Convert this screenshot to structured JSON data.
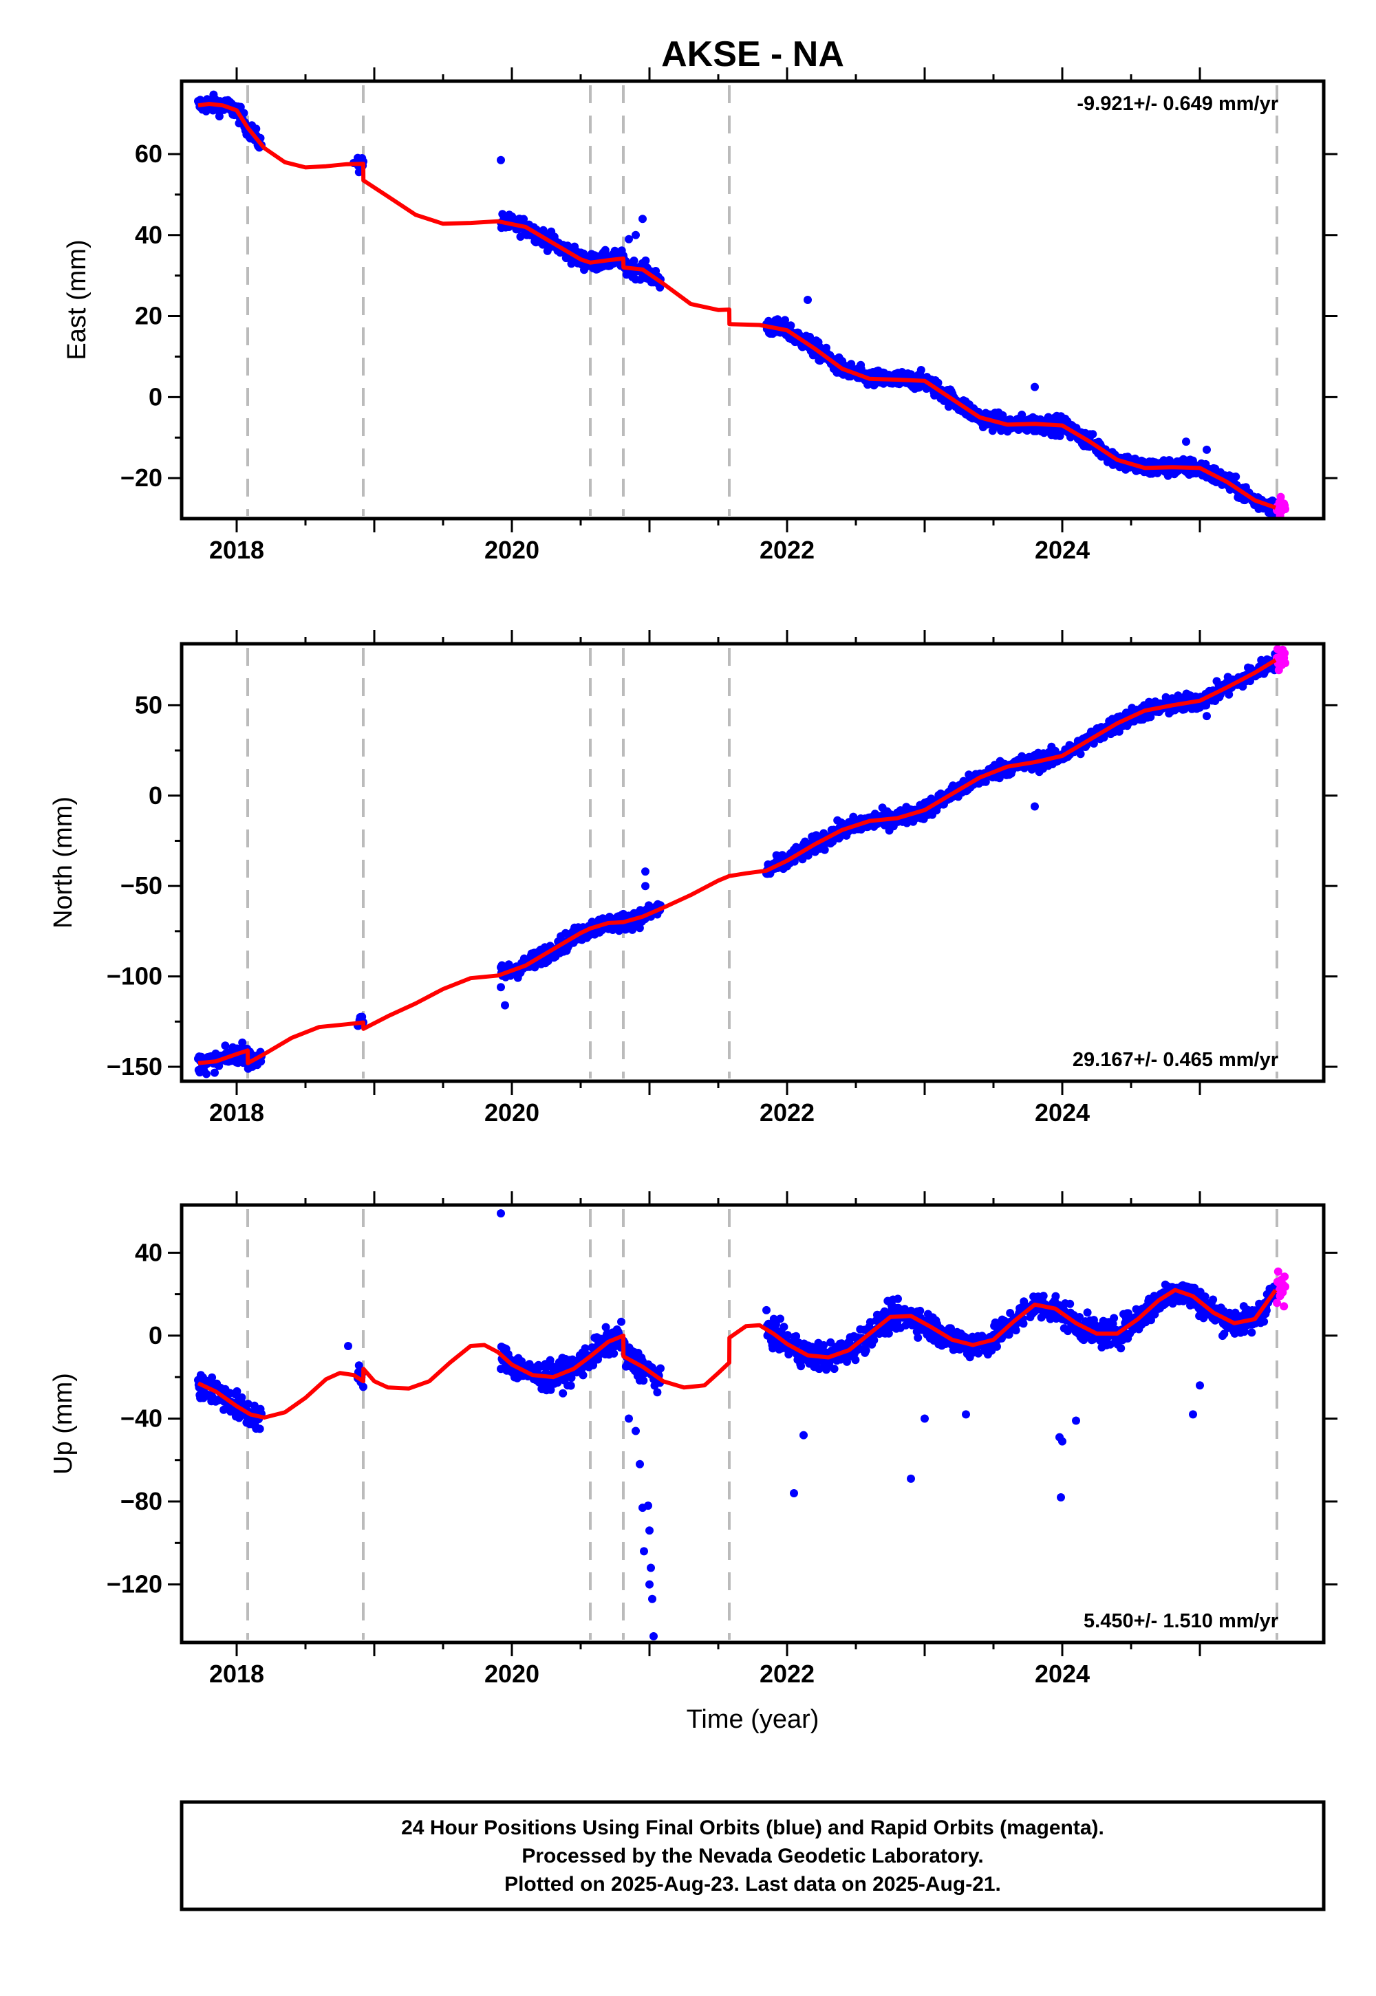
{
  "figure": {
    "title": "AKSE - NA",
    "xlabel": "Time (year)",
    "x_ticks": [
      2018,
      2020,
      2022,
      2024
    ],
    "xlim": [
      2017.6,
      2025.9
    ],
    "breaks": [
      2018.08,
      2018.92,
      2020.57,
      2020.81,
      2021.58,
      2025.56
    ],
    "footer": [
      "24 Hour Positions Using Final Orbits (blue) and Rapid Orbits (magenta).",
      "Processed by the Nevada Geodetic Laboratory.",
      "Plotted on 2025-Aug-23. Last data on 2025-Aug-21."
    ],
    "colors": {
      "final": "#0000ff",
      "rapid": "#ff00ff",
      "model": "#ff0000",
      "breaks": "#bbbbbb"
    }
  },
  "chart_data": [
    {
      "type": "scatter",
      "ylabel": "East (mm)",
      "ylim": [
        -30,
        78
      ],
      "y_ticks": [
        -20,
        0,
        20,
        40,
        60
      ],
      "rate": "-9.921+/- 0.649 mm/yr",
      "rate_position": "top-right",
      "segments": [
        [
          2017.72,
          2018.18
        ],
        [
          2018.88,
          2018.92
        ],
        [
          2019.92,
          2021.08
        ],
        [
          2021.85,
          2025.55
        ]
      ],
      "rapid_range": [
        2025.56,
        2025.62
      ],
      "model": [
        [
          2017.72,
          72
        ],
        [
          2017.8,
          72.4
        ],
        [
          2017.9,
          72
        ],
        [
          2018.0,
          70.8
        ],
        [
          2018.08,
          66.5
        ],
        [
          2018.2,
          61.5
        ],
        [
          2018.35,
          58
        ],
        [
          2018.5,
          56.7
        ],
        [
          2018.65,
          57
        ],
        [
          2018.8,
          57.5
        ],
        [
          2018.92,
          57.6
        ],
        [
          2018.921,
          53.5
        ],
        [
          2019.1,
          49.5
        ],
        [
          2019.3,
          45
        ],
        [
          2019.5,
          42.8
        ],
        [
          2019.7,
          43
        ],
        [
          2019.9,
          43.4
        ],
        [
          2020.1,
          42
        ],
        [
          2020.3,
          38
        ],
        [
          2020.5,
          34
        ],
        [
          2020.57,
          33.2
        ],
        [
          2020.7,
          33.8
        ],
        [
          2020.81,
          34.2
        ],
        [
          2020.811,
          32
        ],
        [
          2020.95,
          31.5
        ],
        [
          2021.1,
          28
        ],
        [
          2021.3,
          23
        ],
        [
          2021.5,
          21.5
        ],
        [
          2021.58,
          21.6
        ],
        [
          2021.581,
          18
        ],
        [
          2021.8,
          17.8
        ],
        [
          2022.0,
          16.5
        ],
        [
          2022.2,
          12
        ],
        [
          2022.4,
          7
        ],
        [
          2022.6,
          4.5
        ],
        [
          2022.8,
          4.3
        ],
        [
          2023.0,
          4
        ],
        [
          2023.2,
          -0.5
        ],
        [
          2023.4,
          -5
        ],
        [
          2023.6,
          -6.8
        ],
        [
          2023.8,
          -6.6
        ],
        [
          2024.0,
          -7
        ],
        [
          2024.2,
          -11
        ],
        [
          2024.4,
          -15.5
        ],
        [
          2024.6,
          -17.5
        ],
        [
          2024.8,
          -17.3
        ],
        [
          2025.0,
          -17.5
        ],
        [
          2025.2,
          -21
        ],
        [
          2025.4,
          -25.5
        ],
        [
          2025.55,
          -27.3
        ]
      ],
      "outliers": [
        [
          2019.92,
          58.5
        ],
        [
          2020.95,
          44
        ],
        [
          2020.9,
          40
        ],
        [
          2020.85,
          39
        ],
        [
          2022.15,
          24
        ],
        [
          2023.8,
          2.5
        ],
        [
          2024.9,
          -11
        ],
        [
          2025.05,
          -13
        ],
        [
          2018.85,
          57.8
        ],
        [
          2018.9,
          56
        ]
      ]
    },
    {
      "type": "scatter",
      "ylabel": "North (mm)",
      "ylim": [
        -158,
        84
      ],
      "y_ticks": [
        -150,
        -100,
        -50,
        0,
        50
      ],
      "rate": "29.167+/- 0.465 mm/yr",
      "rate_position": "bottom-right",
      "segments": [
        [
          2017.72,
          2018.18
        ],
        [
          2018.88,
          2018.92
        ],
        [
          2019.92,
          2021.08
        ],
        [
          2021.85,
          2025.55
        ]
      ],
      "rapid_range": [
        2025.56,
        2025.62
      ],
      "model": [
        [
          2017.72,
          -148
        ],
        [
          2017.85,
          -147
        ],
        [
          2018.0,
          -143
        ],
        [
          2018.08,
          -141
        ],
        [
          2018.081,
          -148
        ],
        [
          2018.2,
          -143
        ],
        [
          2018.4,
          -134
        ],
        [
          2018.6,
          -128
        ],
        [
          2018.8,
          -126.5
        ],
        [
          2018.92,
          -125.5
        ],
        [
          2018.921,
          -129
        ],
        [
          2019.1,
          -122
        ],
        [
          2019.3,
          -115
        ],
        [
          2019.5,
          -107
        ],
        [
          2019.7,
          -101
        ],
        [
          2019.9,
          -99.5
        ],
        [
          2020.1,
          -94
        ],
        [
          2020.3,
          -85
        ],
        [
          2020.5,
          -76
        ],
        [
          2020.57,
          -73.5
        ],
        [
          2020.7,
          -70.5
        ],
        [
          2020.81,
          -70
        ],
        [
          2020.95,
          -67
        ],
        [
          2021.1,
          -62
        ],
        [
          2021.3,
          -55
        ],
        [
          2021.5,
          -47
        ],
        [
          2021.58,
          -44.5
        ],
        [
          2021.7,
          -43
        ],
        [
          2021.85,
          -41.5
        ],
        [
          2022.0,
          -36
        ],
        [
          2022.2,
          -27
        ],
        [
          2022.4,
          -19
        ],
        [
          2022.6,
          -14
        ],
        [
          2022.8,
          -12.5
        ],
        [
          2023.0,
          -8
        ],
        [
          2023.2,
          1
        ],
        [
          2023.4,
          10
        ],
        [
          2023.6,
          16
        ],
        [
          2023.8,
          18.5
        ],
        [
          2024.0,
          22
        ],
        [
          2024.2,
          31
        ],
        [
          2024.4,
          40
        ],
        [
          2024.6,
          47
        ],
        [
          2024.8,
          50
        ],
        [
          2025.0,
          52.5
        ],
        [
          2025.2,
          60
        ],
        [
          2025.4,
          68
        ],
        [
          2025.55,
          75
        ]
      ],
      "outliers": [
        [
          2020.97,
          -42
        ],
        [
          2020.97,
          -50
        ],
        [
          2019.95,
          -116
        ],
        [
          2019.92,
          -106
        ],
        [
          2023.8,
          -6
        ],
        [
          2025.05,
          44
        ],
        [
          2017.78,
          -154
        ],
        [
          2018.15,
          -149
        ]
      ]
    },
    {
      "type": "scatter",
      "ylabel": "Up (mm)",
      "ylim": [
        -148,
        63
      ],
      "y_ticks": [
        -120,
        -80,
        -40,
        0,
        40
      ],
      "rate": "5.450+/- 1.510 mm/yr",
      "rate_position": "bottom-right",
      "segments": [
        [
          2017.72,
          2018.18
        ],
        [
          2018.88,
          2018.92
        ],
        [
          2019.92,
          2021.08
        ],
        [
          2021.85,
          2025.55
        ]
      ],
      "rapid_range": [
        2025.56,
        2025.62
      ],
      "model": [
        [
          2017.72,
          -23
        ],
        [
          2017.85,
          -27
        ],
        [
          2018.0,
          -34
        ],
        [
          2018.1,
          -38
        ],
        [
          2018.2,
          -39.5
        ],
        [
          2018.35,
          -37
        ],
        [
          2018.5,
          -30
        ],
        [
          2018.65,
          -21
        ],
        [
          2018.75,
          -18
        ],
        [
          2018.85,
          -19
        ],
        [
          2018.92,
          -22
        ],
        [
          2018.921,
          -16
        ],
        [
          2019.0,
          -22
        ],
        [
          2019.1,
          -25
        ],
        [
          2019.25,
          -25.5
        ],
        [
          2019.4,
          -22
        ],
        [
          2019.55,
          -13
        ],
        [
          2019.7,
          -5
        ],
        [
          2019.8,
          -4.5
        ],
        [
          2019.9,
          -8
        ],
        [
          2020.0,
          -14
        ],
        [
          2020.15,
          -19
        ],
        [
          2020.3,
          -20
        ],
        [
          2020.45,
          -16
        ],
        [
          2020.57,
          -10
        ],
        [
          2020.7,
          -3
        ],
        [
          2020.81,
          0
        ],
        [
          2020.811,
          -10
        ],
        [
          2020.95,
          -15
        ],
        [
          2021.1,
          -22
        ],
        [
          2021.25,
          -25
        ],
        [
          2021.4,
          -24
        ],
        [
          2021.5,
          -18
        ],
        [
          2021.58,
          -13
        ],
        [
          2021.581,
          -1
        ],
        [
          2021.7,
          4.5
        ],
        [
          2021.8,
          5
        ],
        [
          2021.9,
          1
        ],
        [
          2022.0,
          -4
        ],
        [
          2022.15,
          -9.5
        ],
        [
          2022.3,
          -10.5
        ],
        [
          2022.45,
          -7
        ],
        [
          2022.6,
          1
        ],
        [
          2022.75,
          9
        ],
        [
          2022.9,
          9.5
        ],
        [
          2023.05,
          4
        ],
        [
          2023.2,
          -2
        ],
        [
          2023.35,
          -4.5
        ],
        [
          2023.5,
          -2
        ],
        [
          2023.65,
          7
        ],
        [
          2023.8,
          15
        ],
        [
          2023.95,
          13
        ],
        [
          2024.1,
          6
        ],
        [
          2024.25,
          1
        ],
        [
          2024.4,
          1
        ],
        [
          2024.55,
          8
        ],
        [
          2024.7,
          17
        ],
        [
          2024.82,
          22
        ],
        [
          2024.95,
          19
        ],
        [
          2025.1,
          11
        ],
        [
          2025.25,
          6
        ],
        [
          2025.4,
          8
        ],
        [
          2025.55,
          22
        ]
      ],
      "outliers": [
        [
          2019.92,
          59
        ],
        [
          2020.85,
          -40
        ],
        [
          2020.9,
          -46
        ],
        [
          2020.93,
          -62
        ],
        [
          2020.95,
          -83
        ],
        [
          2020.96,
          -104
        ],
        [
          2020.99,
          -82
        ],
        [
          2021.0,
          -120
        ],
        [
          2021.0,
          -94
        ],
        [
          2021.02,
          -127
        ],
        [
          2021.03,
          -145
        ],
        [
          2021.01,
          -112
        ],
        [
          2022.05,
          -76
        ],
        [
          2022.12,
          -48
        ],
        [
          2022.9,
          -69
        ],
        [
          2023.0,
          -40
        ],
        [
          2023.3,
          -38
        ],
        [
          2023.98,
          -49
        ],
        [
          2023.99,
          -78
        ],
        [
          2024.0,
          -51
        ],
        [
          2024.1,
          -41
        ],
        [
          2024.95,
          -38
        ],
        [
          2025.0,
          -24
        ],
        [
          2018.81,
          -5
        ]
      ]
    }
  ]
}
